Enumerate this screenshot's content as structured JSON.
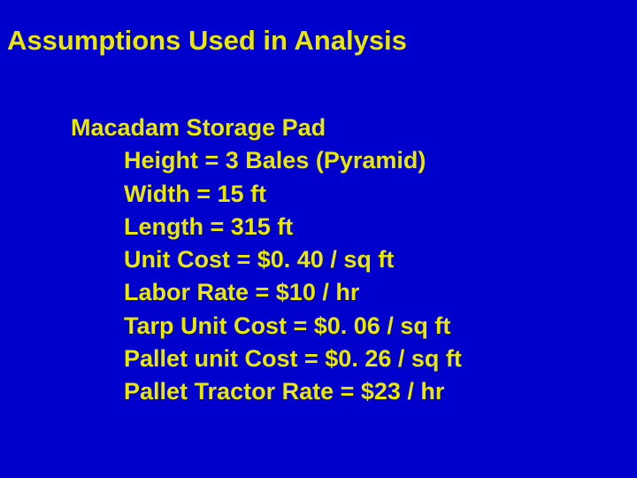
{
  "slide": {
    "background_color": "#0000cc",
    "text_color": "#e8e800",
    "title_fontsize": 31,
    "body_fontsize": 27,
    "font_weight": "bold",
    "font_family": "Arial"
  },
  "title": "Assumptions Used in Analysis",
  "section_header": "Macadam Storage Pad",
  "items": [
    "Height = 3 Bales (Pyramid)",
    "Width = 15 ft",
    "Length = 315 ft",
    "Unit Cost = $0. 40 / sq ft",
    "Labor Rate = $10 / hr",
    "Tarp Unit Cost = $0. 06 / sq ft",
    "Pallet unit Cost = $0. 26 / sq ft",
    "Pallet Tractor Rate = $23 / hr"
  ]
}
